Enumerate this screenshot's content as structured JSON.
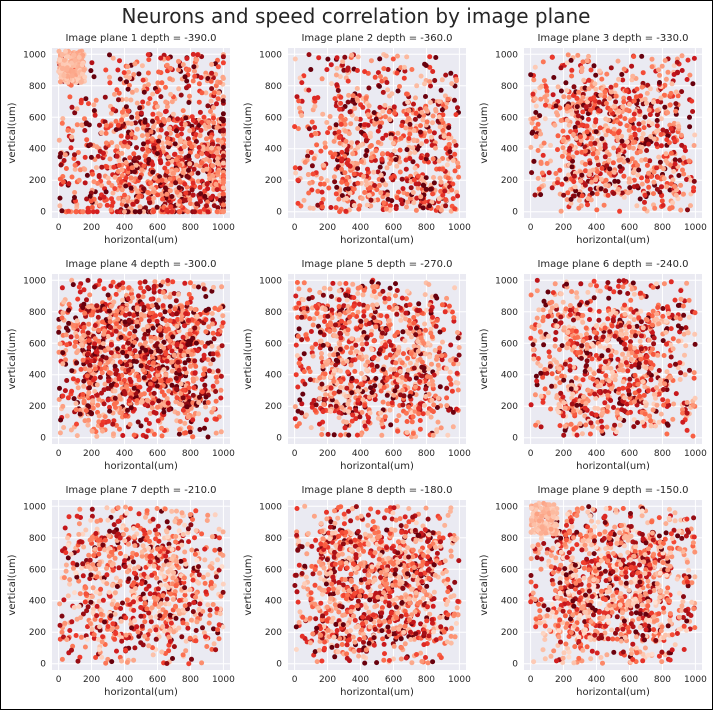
{
  "suptitle": "Neurons and speed correlation by image plane",
  "colors": {
    "plot_bg": "#eaeaf2",
    "grid": "#ffffff",
    "text": "#262626",
    "cmap": [
      "#fff5f0",
      "#fee0d2",
      "#fcbba1",
      "#fc9272",
      "#fb6a4a",
      "#ef3b2c",
      "#cb181d",
      "#a50f15",
      "#67000d"
    ]
  },
  "chart_data": [
    {
      "type": "scatter",
      "title": "Image plane 1 depth  = -390.0",
      "xlabel": "horizontal(um)",
      "ylabel": "vertical(um)",
      "xlim": [
        -40,
        1040
      ],
      "ylim": [
        -40,
        1040
      ],
      "xticks": [
        0,
        200,
        400,
        600,
        800,
        1000
      ],
      "yticks": [
        0,
        200,
        400,
        600,
        800,
        1000
      ],
      "grid": true,
      "point_count": 1200,
      "x_bias": 0.7,
      "y_bias": 0.25,
      "intensity": 0.62,
      "cluster_top_left": true,
      "seed": 11
    },
    {
      "type": "scatter",
      "title": "Image plane 2 depth  = -360.0",
      "xlabel": "horizontal(um)",
      "ylabel": "vertical(um)",
      "xlim": [
        -40,
        1040
      ],
      "ylim": [
        -40,
        1040
      ],
      "xticks": [
        0,
        200,
        400,
        600,
        800,
        1000
      ],
      "yticks": [
        0,
        200,
        400,
        600,
        800,
        1000
      ],
      "grid": true,
      "point_count": 800,
      "x_bias": 0.6,
      "y_bias": 0.35,
      "intensity": 0.5,
      "cluster_top_left": false,
      "seed": 23
    },
    {
      "type": "scatter",
      "title": "Image plane 3 depth  = -330.0",
      "xlabel": "horizontal(um)",
      "ylabel": "vertical(um)",
      "xlim": [
        -40,
        1040
      ],
      "ylim": [
        -40,
        1040
      ],
      "xticks": [
        0,
        200,
        400,
        600,
        800,
        1000
      ],
      "yticks": [
        0,
        200,
        400,
        600,
        800,
        1000
      ],
      "grid": true,
      "point_count": 900,
      "x_bias": 0.55,
      "y_bias": 0.45,
      "intensity": 0.48,
      "cluster_top_left": false,
      "seed": 37
    },
    {
      "type": "scatter",
      "title": "Image plane 4 depth  = -300.0",
      "xlabel": "horizontal(um)",
      "ylabel": "vertical(um)",
      "xlim": [
        -40,
        1040
      ],
      "ylim": [
        -40,
        1040
      ],
      "xticks": [
        0,
        200,
        400,
        600,
        800,
        1000
      ],
      "yticks": [
        0,
        200,
        400,
        600,
        800,
        1000
      ],
      "grid": true,
      "point_count": 1300,
      "x_bias": 0.5,
      "y_bias": 0.5,
      "intensity": 0.62,
      "cluster_top_left": false,
      "seed": 41
    },
    {
      "type": "scatter",
      "title": "Image plane 5 depth  = -270.0",
      "xlabel": "horizontal(um)",
      "ylabel": "vertical(um)",
      "xlim": [
        -40,
        1040
      ],
      "ylim": [
        -40,
        1040
      ],
      "xticks": [
        0,
        200,
        400,
        600,
        800,
        1000
      ],
      "yticks": [
        0,
        200,
        400,
        600,
        800,
        1000
      ],
      "grid": true,
      "point_count": 950,
      "x_bias": 0.5,
      "y_bias": 0.5,
      "intensity": 0.45,
      "cluster_top_left": false,
      "seed": 53
    },
    {
      "type": "scatter",
      "title": "Image plane 6 depth  = -240.0",
      "xlabel": "horizontal(um)",
      "ylabel": "vertical(um)",
      "xlim": [
        -40,
        1040
      ],
      "ylim": [
        -40,
        1040
      ],
      "xticks": [
        0,
        200,
        400,
        600,
        800,
        1000
      ],
      "yticks": [
        0,
        200,
        400,
        600,
        800,
        1000
      ],
      "grid": true,
      "point_count": 900,
      "x_bias": 0.5,
      "y_bias": 0.5,
      "intensity": 0.42,
      "cluster_top_left": false,
      "seed": 67
    },
    {
      "type": "scatter",
      "title": "Image plane 7 depth  = -210.0",
      "xlabel": "horizontal(um)",
      "ylabel": "vertical(um)",
      "xlim": [
        -40,
        1040
      ],
      "ylim": [
        -40,
        1040
      ],
      "xticks": [
        0,
        200,
        400,
        600,
        800,
        1000
      ],
      "yticks": [
        0,
        200,
        400,
        600,
        800,
        1000
      ],
      "grid": true,
      "point_count": 850,
      "x_bias": 0.5,
      "y_bias": 0.5,
      "intensity": 0.32,
      "cluster_top_left": false,
      "seed": 71
    },
    {
      "type": "scatter",
      "title": "Image plane 8 depth  = -180.0",
      "xlabel": "horizontal(um)",
      "ylabel": "vertical(um)",
      "xlim": [
        -40,
        1040
      ],
      "ylim": [
        -40,
        1040
      ],
      "xticks": [
        0,
        200,
        400,
        600,
        800,
        1000
      ],
      "yticks": [
        0,
        200,
        400,
        600,
        800,
        1000
      ],
      "grid": true,
      "point_count": 1100,
      "x_bias": 0.5,
      "y_bias": 0.5,
      "intensity": 0.45,
      "cluster_top_left": false,
      "seed": 83
    },
    {
      "type": "scatter",
      "title": "Image plane 9 depth  = -150.0",
      "xlabel": "horizontal(um)",
      "ylabel": "vertical(um)",
      "xlim": [
        -40,
        1040
      ],
      "ylim": [
        -40,
        1040
      ],
      "xticks": [
        0,
        200,
        400,
        600,
        800,
        1000
      ],
      "yticks": [
        0,
        200,
        400,
        600,
        800,
        1000
      ],
      "grid": true,
      "point_count": 1100,
      "x_bias": 0.5,
      "y_bias": 0.5,
      "intensity": 0.3,
      "cluster_top_left": true,
      "seed": 97
    }
  ]
}
